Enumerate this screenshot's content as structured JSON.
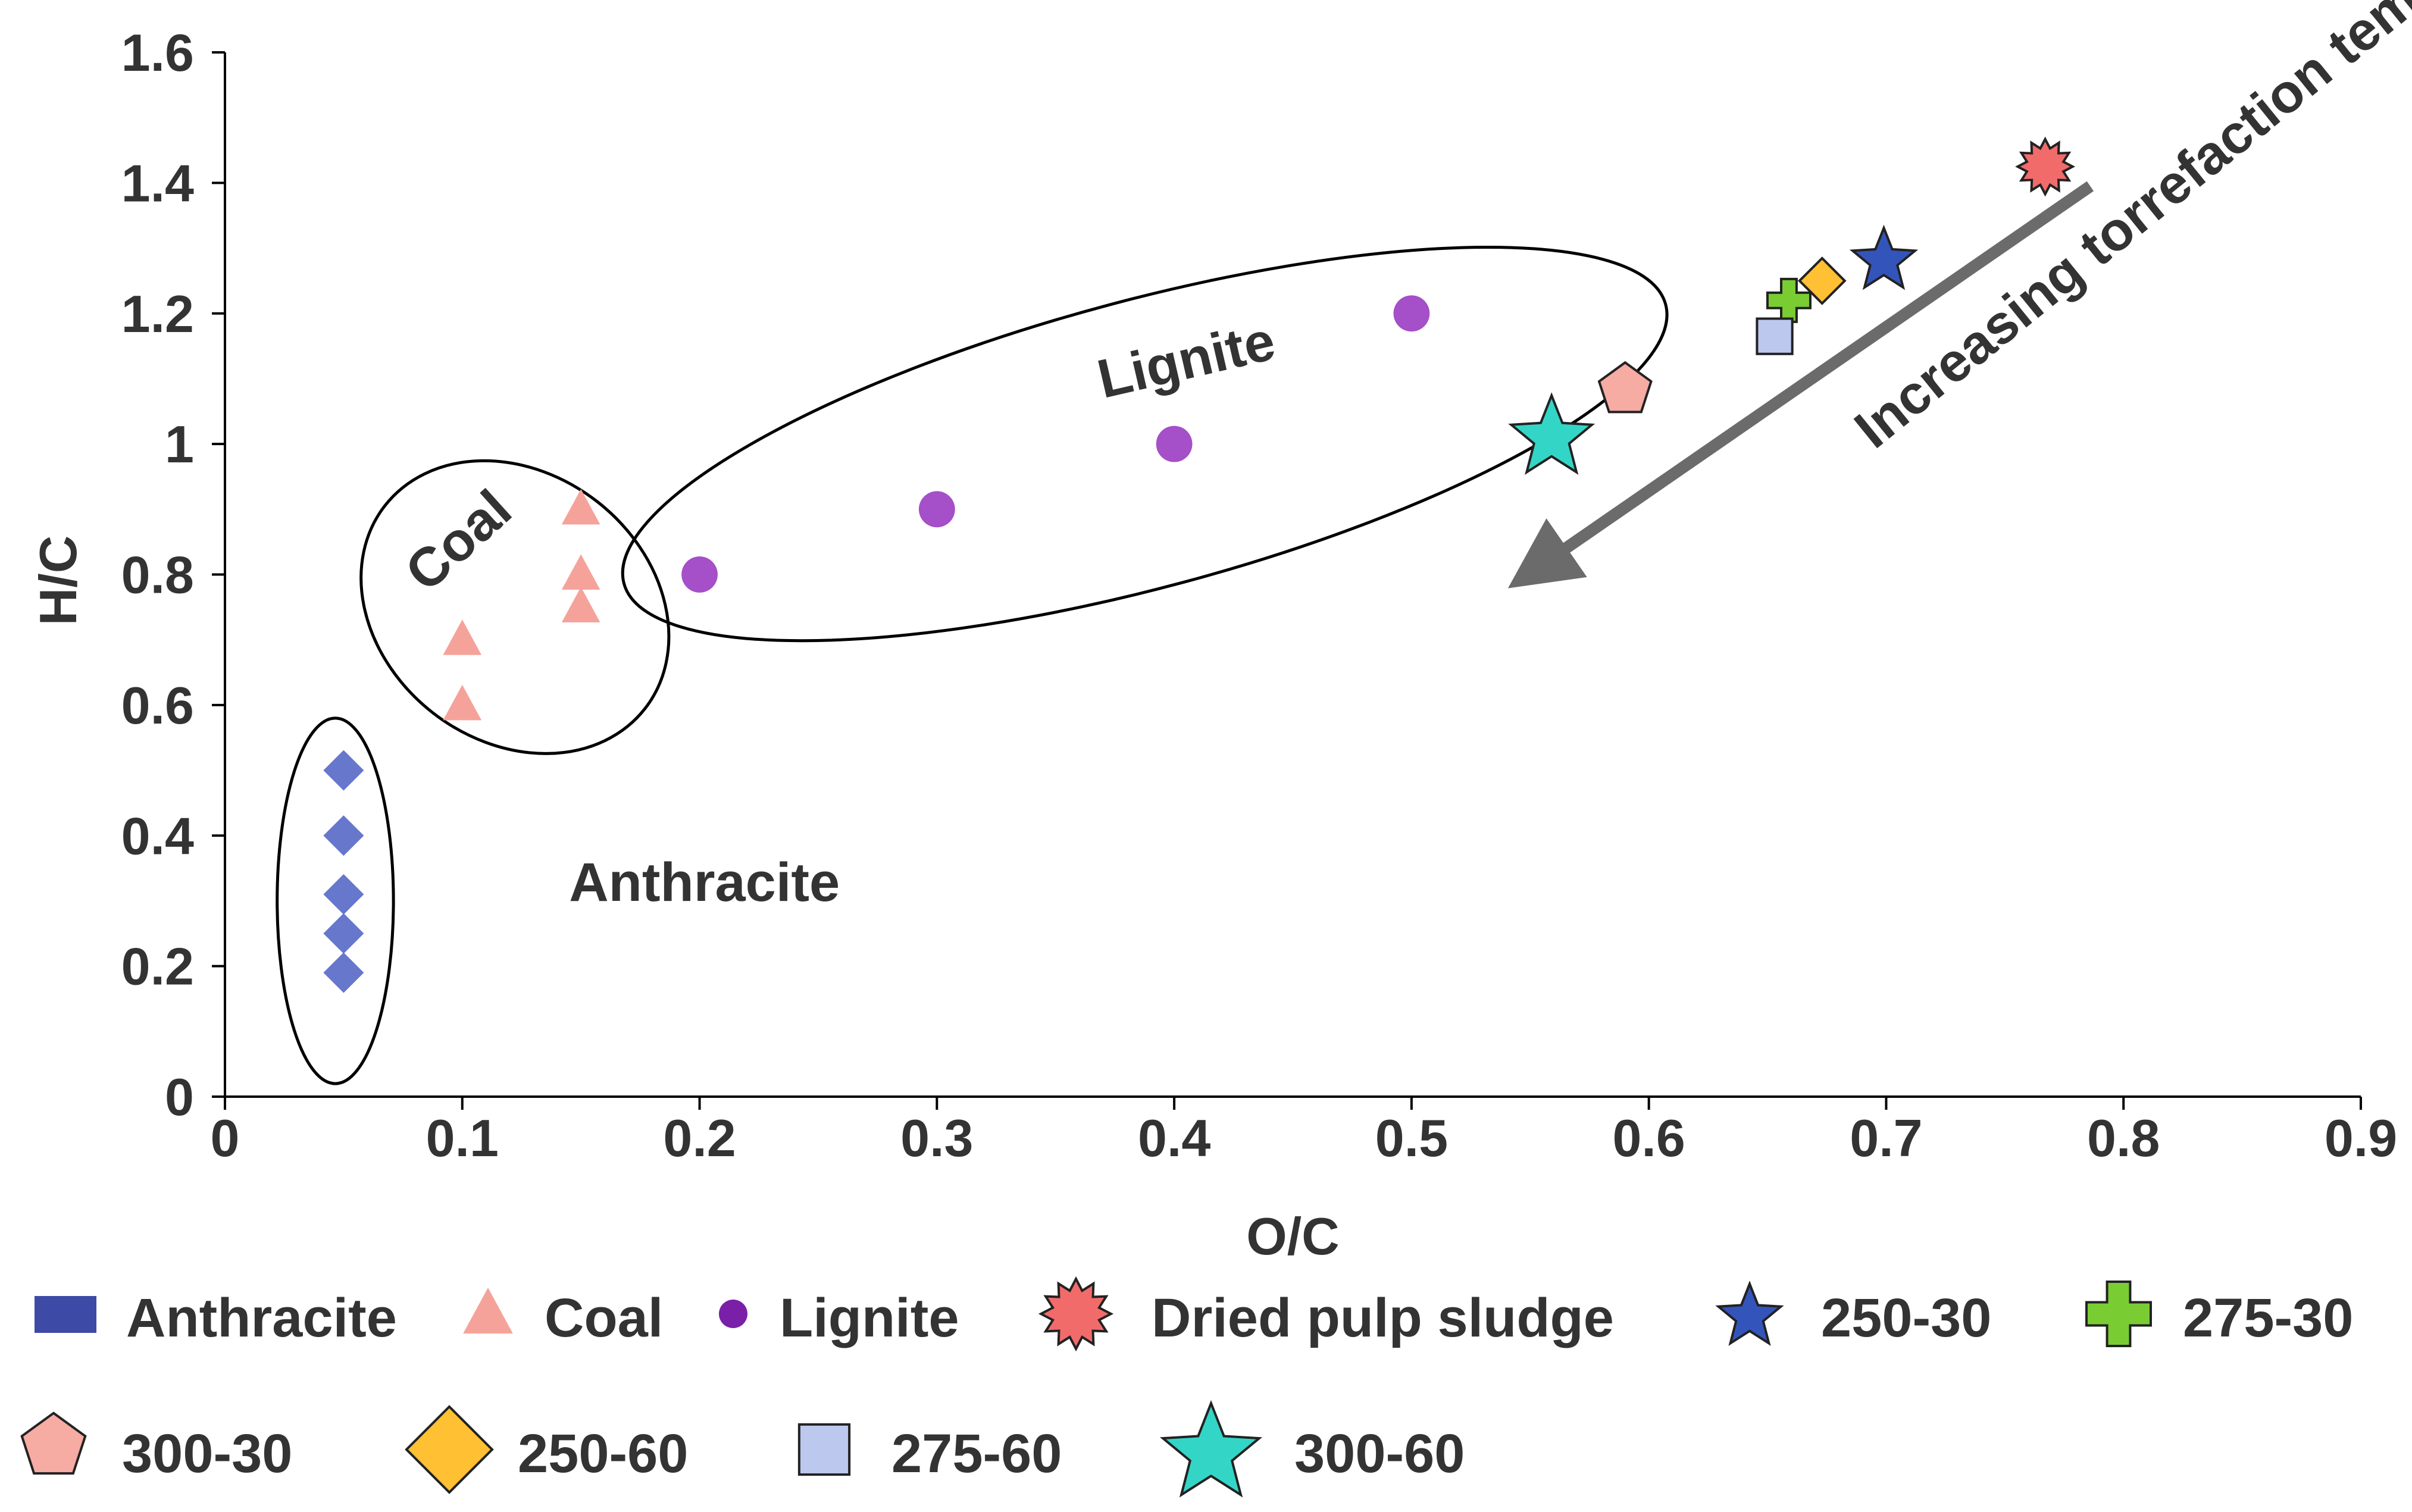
{
  "chart_data": {
    "type": "scatter",
    "title": "",
    "xlabel": "O/C",
    "ylabel": "H/C",
    "xlim": [
      0,
      0.9
    ],
    "ylim": [
      0,
      1.6
    ],
    "xticks": [
      "0",
      "0.1",
      "0.2",
      "0.3",
      "0.4",
      "0.5",
      "0.6",
      "0.7",
      "0.8",
      "0.9"
    ],
    "yticks": [
      "0",
      "0.2",
      "0.4",
      "0.6",
      "0.8",
      "1",
      "1.2",
      "1.4",
      "1.6"
    ],
    "grid": false,
    "series": [
      {
        "name": "Anthracite",
        "marker": "diamond",
        "color": "#6677cc",
        "legend_color": "#3d4aa6",
        "points": [
          [
            0.05,
            0.19
          ],
          [
            0.05,
            0.25
          ],
          [
            0.05,
            0.31
          ],
          [
            0.05,
            0.4
          ],
          [
            0.05,
            0.5
          ]
        ]
      },
      {
        "name": "Coal",
        "marker": "triangle",
        "color": "#f5a39a",
        "legend_color": "#f5a39a",
        "points": [
          [
            0.1,
            0.6
          ],
          [
            0.1,
            0.7
          ],
          [
            0.15,
            0.75
          ],
          [
            0.15,
            0.8
          ],
          [
            0.15,
            0.9
          ]
        ]
      },
      {
        "name": "Lignite",
        "marker": "circle",
        "color": "#a54fc8",
        "legend_color": "#7a1fa8",
        "points": [
          [
            0.2,
            0.8
          ],
          [
            0.3,
            0.9
          ],
          [
            0.4,
            1.0
          ],
          [
            0.5,
            1.2
          ]
        ]
      },
      {
        "name": "Dried pulp sludge",
        "marker": "burst",
        "color": "#f26b6b",
        "legend_color": "#f26b6b",
        "points": [
          [
            0.767,
            1.425
          ]
        ]
      },
      {
        "name": "250-30",
        "marker": "star",
        "color": "#3355bb",
        "legend_color": "#3355bb",
        "points": [
          [
            0.699,
            1.285
          ]
        ]
      },
      {
        "name": "275-30",
        "marker": "cross",
        "color": "#7acc33",
        "legend_color": "#7acc33",
        "points": [
          [
            0.659,
            1.22
          ]
        ]
      },
      {
        "name": "300-30",
        "marker": "pentagon",
        "color": "#f6aba3",
        "legend_color": "#f6aba3",
        "points": [
          [
            0.59,
            1.085
          ]
        ]
      },
      {
        "name": "250-60",
        "marker": "diamond",
        "color": "#ffc033",
        "legend_color": "#ffc033",
        "points": [
          [
            0.673,
            1.25
          ]
        ]
      },
      {
        "name": "275-60",
        "marker": "square",
        "color": "#bcc8ee",
        "legend_color": "#bcc8ee",
        "points": [
          [
            0.653,
            1.165
          ]
        ]
      },
      {
        "name": "300-60",
        "marker": "star",
        "color": "#33d6c6",
        "legend_color": "#33d6c6",
        "points": [
          [
            0.559,
            1.015
          ]
        ]
      }
    ],
    "annotations": [
      {
        "id": "anthracite",
        "text": "Anthracite",
        "x": 0.145,
        "y": 0.3,
        "rotation": 0
      },
      {
        "id": "coal",
        "text": "Coal",
        "x": 0.085,
        "y": 0.77,
        "rotation": -42
      },
      {
        "id": "lignite",
        "text": "Lignite",
        "x": 0.37,
        "y": 1.07,
        "rotation": -13
      },
      {
        "id": "arrow",
        "text": "Increasing torrefaction tempearture",
        "x": 0.695,
        "y": 0.99,
        "rotation": -39
      }
    ],
    "groups": [
      {
        "name": "Anthracite",
        "cx": 0.0465,
        "cy": 0.3,
        "rx": 0.0245,
        "ry": 0.56,
        "rotation": 0
      },
      {
        "name": "Coal",
        "cx": 0.1222,
        "cy": 0.75,
        "rx": 0.0695,
        "ry": 0.41,
        "rotation": 38
      },
      {
        "name": "Lignite",
        "cx": 0.3876,
        "cy": 1.0,
        "rx": 0.2272,
        "ry": 0.44,
        "rotation": -15
      }
    ],
    "arrow": {
      "from": [
        0.786,
        1.395
      ],
      "to": [
        0.553,
        0.81
      ]
    },
    "legend_position": "bottom"
  }
}
